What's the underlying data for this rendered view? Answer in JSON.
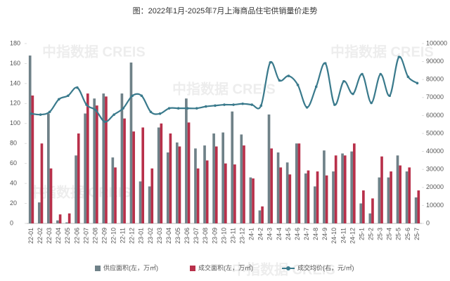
{
  "chart_data": {
    "type": "bar_line",
    "title": "图：2022年1月-2025年7月上海商品住宅供销量价走势",
    "watermark": "中指数据 CREIS",
    "categories": [
      "22-01",
      "22-02",
      "22-03",
      "22-04",
      "22-05",
      "22-06",
      "22-07",
      "22-08",
      "22-09",
      "22-10",
      "22-11",
      "22-12",
      "23-01",
      "23-02",
      "23-03",
      "23-04",
      "23-05",
      "23-06",
      "23-07",
      "23-08",
      "23-09",
      "23-10",
      "23-11",
      "23-12",
      "24-1",
      "24-2",
      "24-3",
      "24-4",
      "24-5",
      "24-6",
      "24-7",
      "24-8",
      "24-9",
      "24-10",
      "24-11",
      "24-12",
      "25-1",
      "25-2",
      "25-3",
      "25-4",
      "25-5",
      "25-6",
      "25-7"
    ],
    "series": [
      {
        "name": "供应面积(左，万㎡)",
        "color": "#6f8188",
        "kind": "bar",
        "axis": "y",
        "values": [
          168,
          21,
          110,
          3,
          1,
          68,
          110,
          125,
          130,
          66,
          130,
          161,
          42,
          37,
          96,
          71,
          81,
          125,
          75,
          78,
          90,
          91,
          112,
          89,
          46,
          13,
          109,
          71,
          61,
          80,
          50,
          37,
          73,
          52,
          70,
          72,
          20,
          10,
          46,
          46,
          68,
          52,
          26
        ]
      },
      {
        "name": "成交面积(左，万㎡)",
        "color": "#b8304a",
        "kind": "bar",
        "axis": "y",
        "values": [
          128,
          80,
          55,
          9,
          10,
          90,
          130,
          118,
          127,
          56,
          105,
          92,
          96,
          55,
          100,
          90,
          77,
          101,
          55,
          63,
          77,
          60,
          59,
          78,
          45,
          17,
          75,
          56,
          49,
          80,
          53,
          52,
          48,
          68,
          68,
          80,
          33,
          25,
          67,
          52,
          58,
          56,
          33
        ]
      },
      {
        "name": "成交均价(右，元/㎡)",
        "color": "#3a7a8c",
        "kind": "line",
        "axis": "y2",
        "values": [
          61000,
          60500,
          62000,
          69000,
          71000,
          75500,
          66000,
          63000,
          56500,
          60500,
          64000,
          71000,
          71000,
          62000,
          61000,
          64000,
          64000,
          64000,
          64000,
          65000,
          65500,
          66000,
          66000,
          66500,
          66000,
          65500,
          89500,
          79500,
          82000,
          77000,
          64500,
          76000,
          89000,
          66000,
          79000,
          72000,
          83000,
          67000,
          83000,
          71000,
          92500,
          81500,
          78000
        ]
      }
    ],
    "ylim": [
      0,
      180
    ],
    "yticks": [
      0,
      20,
      40,
      60,
      80,
      100,
      120,
      140,
      160,
      180
    ],
    "y2lim": [
      0,
      100000
    ],
    "y2ticks": [
      0,
      10000,
      20000,
      30000,
      40000,
      50000,
      60000,
      70000,
      80000,
      90000,
      100000
    ],
    "legend": "bottom"
  }
}
